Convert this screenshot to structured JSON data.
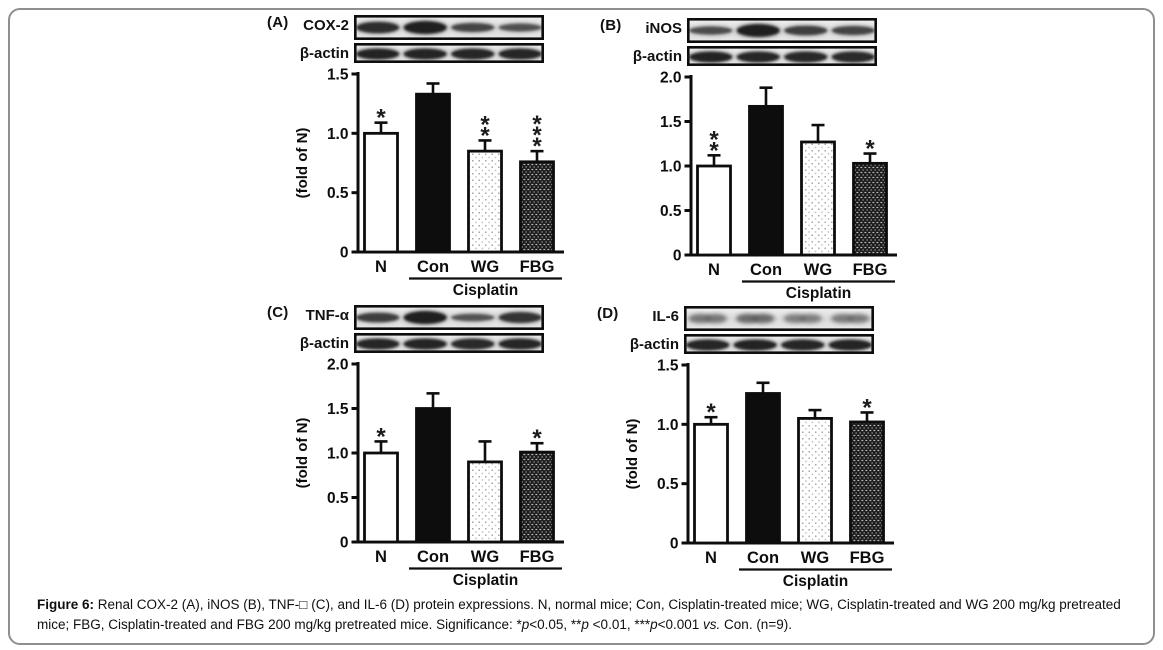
{
  "figure": {
    "frame_color": "#8f8f8f",
    "panels": [
      {
        "letter": "(A)",
        "protein": "COX-2",
        "loading_control": "β-actin",
        "blot_protein_lanes": [
          0.82,
          1.0,
          0.55,
          0.42
        ],
        "blot_actin_lanes": [
          0.95,
          0.92,
          0.9,
          0.9
        ],
        "blot_style": "sharp"
      },
      {
        "letter": "(B)",
        "protein": "iNOS",
        "loading_control": "β-actin",
        "blot_protein_lanes": [
          0.45,
          1.0,
          0.62,
          0.55
        ],
        "blot_actin_lanes": [
          0.95,
          0.9,
          0.88,
          0.86
        ],
        "blot_style": "sharp"
      },
      {
        "letter": "(C)",
        "protein": "TNF-α",
        "loading_control": "β-actin",
        "blot_protein_lanes": [
          0.62,
          1.0,
          0.38,
          0.75
        ],
        "blot_actin_lanes": [
          0.9,
          0.92,
          0.86,
          0.9
        ],
        "blot_style": "sharp"
      },
      {
        "letter": "(D)",
        "protein": "IL-6",
        "loading_control": "β-actin",
        "blot_protein_lanes": [
          0.5,
          0.72,
          0.38,
          0.42
        ],
        "blot_actin_lanes": [
          0.9,
          0.95,
          0.9,
          0.92
        ],
        "blot_style": "fuzzy"
      }
    ],
    "caption": {
      "segments": [
        {
          "text": "Figure 6:",
          "bold": true
        },
        {
          "text": " Renal COX-2 (A), iNOS (B), TNF-□ (C), and IL-6 (D) protein expressions. N, normal mice; Con, Cisplatin-treated mice; WG, Cisplatin-treated and WG 200 mg/kg pretreated mice; FBG, Cisplatin-treated and FBG 200 mg/kg pretreated mice. Significance: *"
        },
        {
          "text": "p",
          "italic": true
        },
        {
          "text": "<0.05, **"
        },
        {
          "text": "p",
          "italic": true
        },
        {
          "text": " <0.01, ***"
        },
        {
          "text": "p",
          "italic": true
        },
        {
          "text": "<0.001 "
        },
        {
          "text": "vs.",
          "italic": true
        },
        {
          "text": " Con. (n=9)."
        }
      ]
    },
    "colors": {
      "axis": "#0d0d0d",
      "bar_open_fill": "#ffffff",
      "bar_solid_fill": "#0d0d0d",
      "dot_pattern_dot": "#a6a6a6",
      "checker_bg": "#1c1c1c",
      "checker_dash": "#b9b9b9"
    }
  },
  "chart_data": [
    {
      "type": "bar",
      "panel": "A",
      "protein": "COX-2",
      "categories": [
        "N",
        "Con",
        "WG",
        "FBG"
      ],
      "values": [
        1.0,
        1.33,
        0.85,
        0.76
      ],
      "errors": [
        0.09,
        0.09,
        0.09,
        0.09
      ],
      "significance": [
        "*",
        "",
        "**",
        "***"
      ],
      "bar_styles": [
        "open",
        "solid",
        "dots",
        "checker"
      ],
      "ylabel": "(fold of N)",
      "ylim": [
        0,
        1.5
      ],
      "yticks": [
        "0",
        "0.5",
        "1.0",
        "1.5"
      ],
      "group_label": "Cisplatin",
      "grouped_categories": [
        "Con",
        "WG",
        "FBG"
      ]
    },
    {
      "type": "bar",
      "panel": "B",
      "protein": "iNOS",
      "categories": [
        "N",
        "Con",
        "WG",
        "FBG"
      ],
      "values": [
        1.0,
        1.67,
        1.27,
        1.03
      ],
      "errors": [
        0.12,
        0.21,
        0.19,
        0.11
      ],
      "significance": [
        "**",
        "",
        "",
        "*"
      ],
      "bar_styles": [
        "open",
        "solid",
        "dots",
        "checker"
      ],
      "ylabel": "",
      "ylim": [
        0,
        2.0
      ],
      "yticks": [
        "0",
        "0.5",
        "1.0",
        "1.5",
        "2.0"
      ],
      "group_label": "Cisplatin",
      "grouped_categories": [
        "Con",
        "WG",
        "FBG"
      ]
    },
    {
      "type": "bar",
      "panel": "C",
      "protein": "TNF-α",
      "categories": [
        "N",
        "Con",
        "WG",
        "FBG"
      ],
      "values": [
        1.0,
        1.5,
        0.9,
        1.01
      ],
      "errors": [
        0.13,
        0.17,
        0.23,
        0.1
      ],
      "significance": [
        "*",
        "",
        "",
        "*"
      ],
      "bar_styles": [
        "open",
        "solid",
        "dots",
        "checker"
      ],
      "ylabel": "(fold of N)",
      "ylim": [
        0,
        2.0
      ],
      "yticks": [
        "0",
        "0.5",
        "1.0",
        "1.5",
        "2.0"
      ],
      "group_label": "Cisplatin",
      "grouped_categories": [
        "Con",
        "WG",
        "FBG"
      ]
    },
    {
      "type": "bar",
      "panel": "D",
      "protein": "IL-6",
      "categories": [
        "N",
        "Con",
        "WG",
        "FBG"
      ],
      "values": [
        1.0,
        1.26,
        1.05,
        1.02
      ],
      "errors": [
        0.06,
        0.09,
        0.07,
        0.08
      ],
      "significance": [
        "*",
        "",
        "",
        "*"
      ],
      "bar_styles": [
        "open",
        "solid",
        "dots",
        "checker"
      ],
      "ylabel": "(fold of N)",
      "ylim": [
        0,
        1.5
      ],
      "yticks": [
        "0",
        "0.5",
        "1.0",
        "1.5"
      ],
      "group_label": "Cisplatin",
      "grouped_categories": [
        "Con",
        "WG",
        "FBG"
      ]
    }
  ]
}
